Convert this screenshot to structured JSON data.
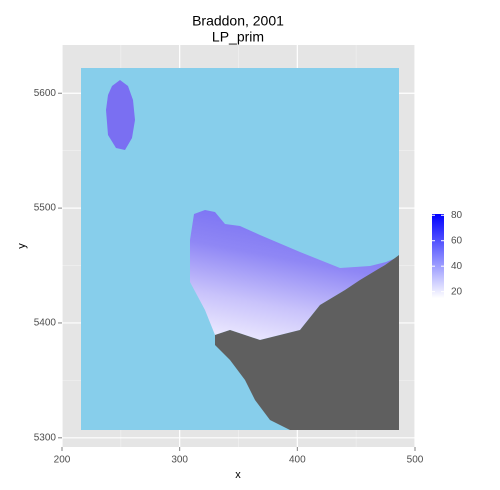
{
  "chart_data": {
    "type": "raster",
    "title": "Braddon, 2001",
    "subtitle": "LP_prim",
    "x_label": "x",
    "y_label": "y",
    "xlim": [
      200,
      500
    ],
    "xticks": [
      200,
      300,
      400,
      500
    ],
    "ylim": [
      5292,
      5642
    ],
    "yticks": [
      5300,
      5400,
      5500,
      5600
    ],
    "grid": true,
    "colorbar": {
      "low_color": "#ffffff",
      "high_color": "#0000ff",
      "lim": [
        15,
        81
      ],
      "ticks": [
        20,
        40,
        60,
        80
      ]
    }
  }
}
